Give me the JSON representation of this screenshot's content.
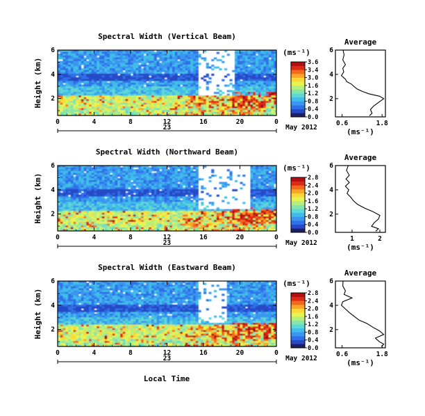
{
  "colorbar_colors": [
    "#202060",
    "#2848c8",
    "#2f6fe8",
    "#3a96f0",
    "#3fbde8",
    "#5fd7d3",
    "#86e5ac",
    "#b7ef7e",
    "#e5f452",
    "#fbd835",
    "#fca428",
    "#f46a1c",
    "#dc2a18",
    "#b01010"
  ],
  "panels": [
    {
      "title": "Spectral Width (Vertical Beam)",
      "ylabel": "Height (km)",
      "yticks": [
        "2",
        "4",
        "6"
      ],
      "xticks": [
        "0",
        "4",
        "8",
        "12",
        "16",
        "20",
        "0"
      ],
      "date_day": "23",
      "date_label": "May 2012",
      "unit": "(ms⁻¹)",
      "cbar_ticks": [
        "3.6",
        "3.4",
        "3.0",
        "1.6",
        "1.2",
        "0.8",
        "0.4",
        "0.0"
      ],
      "avg_title": "Average",
      "avg_yticks": [
        "2",
        "4",
        "6"
      ],
      "avg_xticks": [
        "0.6",
        "1.8"
      ],
      "avg_unit": "(ms⁻¹)"
    },
    {
      "title": "Spectral Width (Northward Beam)",
      "ylabel": "Height (km)",
      "yticks": [
        "2",
        "4",
        "6"
      ],
      "xticks": [
        "0",
        "4",
        "8",
        "12",
        "16",
        "20",
        "0"
      ],
      "date_day": "23",
      "date_label": "May 2012",
      "unit": "(ms⁻¹)",
      "cbar_ticks": [
        "2.8",
        "2.4",
        "2.0",
        "1.6",
        "1.2",
        "0.8",
        "0.4",
        "0.0"
      ],
      "avg_title": "Average",
      "avg_yticks": [
        "2",
        "4",
        "6"
      ],
      "avg_xticks": [
        "1",
        "2"
      ],
      "avg_unit": "(ms⁻¹)"
    },
    {
      "title": "Spectral Width (Eastward Beam)",
      "ylabel": "Height (km)",
      "yticks": [
        "2",
        "4",
        "6"
      ],
      "xticks": [
        "0",
        "4",
        "8",
        "12",
        "16",
        "20",
        "0"
      ],
      "date_day": "23",
      "date_label": "May 2012",
      "unit": "(ms⁻¹)",
      "cbar_ticks": [
        "2.8",
        "2.4",
        "2.0",
        "1.6",
        "1.2",
        "0.8",
        "0.4",
        "0.0"
      ],
      "avg_title": "Average",
      "avg_yticks": [
        "2",
        "4",
        "6"
      ],
      "avg_xticks": [
        "0.6",
        "1.8"
      ],
      "avg_unit": "(ms⁻¹)"
    }
  ],
  "xlabel": "Local Time",
  "chart_data": [
    {
      "type": "heatmap",
      "title": "Spectral Width (Vertical Beam)",
      "x": "local time (h)",
      "xlim": [
        0,
        24
      ],
      "y": "height (km)",
      "ylim": [
        0.6,
        6.0
      ],
      "colorbar": {
        "label": "(ms⁻¹)",
        "range": [
          0.0,
          3.6
        ]
      },
      "features": {
        "high_values_below_km": 2.2,
        "no_data_window_h": [
          15.5,
          19.5
        ],
        "no_data_above_km": 2.2
      }
    },
    {
      "type": "line",
      "title": "Average",
      "xlabel": "(ms⁻¹)",
      "ylabel": "",
      "xlim": [
        0.4,
        1.9
      ],
      "ylim": [
        0.5,
        6.0
      ],
      "points": [
        [
          0.63,
          6.0
        ],
        [
          0.66,
          5.6
        ],
        [
          0.62,
          5.2
        ],
        [
          0.7,
          4.8
        ],
        [
          0.62,
          4.5
        ],
        [
          0.65,
          4.2
        ],
        [
          0.58,
          3.9
        ],
        [
          0.7,
          3.6
        ],
        [
          0.74,
          3.4
        ],
        [
          0.88,
          3.2
        ],
        [
          0.96,
          3.0
        ],
        [
          1.05,
          2.8
        ],
        [
          1.2,
          2.6
        ],
        [
          1.4,
          2.4
        ],
        [
          1.72,
          2.2
        ],
        [
          1.85,
          2.0
        ],
        [
          1.7,
          1.7
        ],
        [
          1.55,
          1.4
        ],
        [
          1.45,
          1.1
        ],
        [
          1.5,
          0.8
        ],
        [
          1.42,
          0.6
        ]
      ]
    },
    {
      "type": "heatmap",
      "title": "Spectral Width (Northward Beam)",
      "x": "local time (h)",
      "xlim": [
        0,
        24
      ],
      "y": "height (km)",
      "ylim": [
        0.6,
        6.0
      ],
      "colorbar": {
        "label": "(ms⁻¹)",
        "range": [
          0.0,
          2.8
        ]
      },
      "features": {
        "high_values_below_km": 2.2,
        "no_data_window_h": [
          15.5,
          21.0
        ],
        "no_data_above_km": 2.4
      }
    },
    {
      "type": "line",
      "title": "Average",
      "xlabel": "(ms⁻¹)",
      "ylabel": "",
      "xlim": [
        0.4,
        2.2
      ],
      "ylim": [
        0.5,
        6.0
      ],
      "points": [
        [
          0.86,
          6.0
        ],
        [
          0.8,
          5.6
        ],
        [
          0.9,
          5.2
        ],
        [
          0.78,
          4.9
        ],
        [
          0.9,
          4.6
        ],
        [
          0.76,
          4.3
        ],
        [
          0.88,
          4.0
        ],
        [
          0.82,
          3.7
        ],
        [
          0.95,
          3.4
        ],
        [
          1.05,
          3.1
        ],
        [
          1.2,
          2.8
        ],
        [
          1.45,
          2.5
        ],
        [
          1.75,
          2.2
        ],
        [
          2.0,
          1.9
        ],
        [
          1.95,
          1.6
        ],
        [
          1.8,
          1.3
        ],
        [
          1.7,
          1.0
        ],
        [
          1.95,
          0.8
        ],
        [
          1.85,
          0.6
        ]
      ]
    },
    {
      "type": "heatmap",
      "title": "Spectral Width (Eastward Beam)",
      "x": "local time (h)",
      "xlim": [
        0,
        24
      ],
      "y": "height (km)",
      "ylim": [
        0.6,
        6.0
      ],
      "colorbar": {
        "label": "(ms⁻¹)",
        "range": [
          0.0,
          2.8
        ]
      },
      "features": {
        "high_values_below_km": 2.4,
        "no_data_window_h": [
          15.5,
          18.5
        ],
        "no_data_above_km": 2.6
      }
    },
    {
      "type": "line",
      "title": "Average",
      "xlabel": "(ms⁻¹)",
      "ylabel": "",
      "xlim": [
        0.4,
        1.9
      ],
      "ylim": [
        0.5,
        6.0
      ],
      "points": [
        [
          0.63,
          6.0
        ],
        [
          0.62,
          5.6
        ],
        [
          0.7,
          5.2
        ],
        [
          0.66,
          4.9
        ],
        [
          0.9,
          4.6
        ],
        [
          0.62,
          4.3
        ],
        [
          0.58,
          4.0
        ],
        [
          0.7,
          3.7
        ],
        [
          0.82,
          3.4
        ],
        [
          0.96,
          3.1
        ],
        [
          1.1,
          2.8
        ],
        [
          1.35,
          2.5
        ],
        [
          1.52,
          2.2
        ],
        [
          1.72,
          1.9
        ],
        [
          1.85,
          1.6
        ],
        [
          1.6,
          1.3
        ],
        [
          1.72,
          1.0
        ],
        [
          1.85,
          0.8
        ],
        [
          1.78,
          0.6
        ]
      ]
    }
  ]
}
